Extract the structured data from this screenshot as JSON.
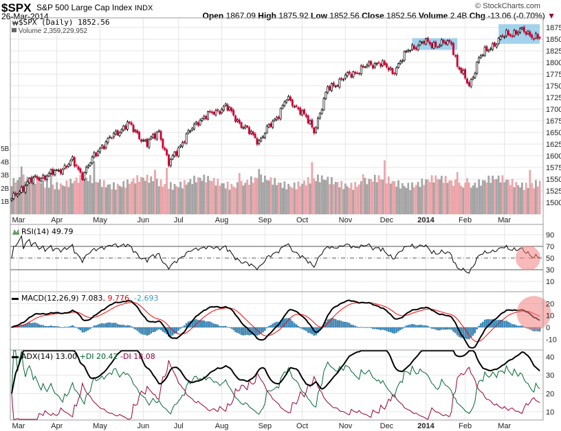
{
  "header": {
    "symbol": "$SPX",
    "name": "S&P 500 Large Cap Index",
    "exchange": "INDX",
    "date": "26-Mar-2014",
    "copyright": "© StockCharts.com",
    "open_label": "Open",
    "open": "1867.09",
    "high_label": "High",
    "high": "1875.92",
    "low_label": "Low",
    "low": "1852.56",
    "close_label": "Close",
    "close": "1852.56",
    "volume_label": "Volume",
    "volume": "2.4B",
    "chg_label": "Chg",
    "chg": "-13.06 (-0.70%)"
  },
  "colors": {
    "up": "#000000",
    "down": "#cc0033",
    "vol_up": "#aaaaaa",
    "vol_down": "#f0a8b0",
    "macd": "#000000",
    "signal": "#ff0000",
    "hist": "#3a8fc0",
    "pdi": "#006633",
    "mdi": "#990033",
    "highlight": "#8cc8e8",
    "circle": "#f28080"
  },
  "chart_data": [
    {
      "type": "candlestick",
      "title": "$SPX (Daily) 1852.56",
      "volume_legend": "Volume 2,359,229,952",
      "price_keypoints": [
        [
          0,
          1505
        ],
        [
          8,
          1544
        ],
        [
          23,
          1566
        ],
        [
          31,
          1588
        ],
        [
          36,
          1559
        ],
        [
          45,
          1618
        ],
        [
          59,
          1669
        ],
        [
          69,
          1625
        ],
        [
          75,
          1654
        ],
        [
          80,
          1581
        ],
        [
          85,
          1618
        ],
        [
          95,
          1676
        ],
        [
          109,
          1706
        ],
        [
          118,
          1662
        ],
        [
          126,
          1632
        ],
        [
          135,
          1684
        ],
        [
          140,
          1721
        ],
        [
          147,
          1699
        ],
        [
          154,
          1654
        ],
        [
          161,
          1743
        ],
        [
          170,
          1769
        ],
        [
          182,
          1794
        ],
        [
          187,
          1801
        ],
        [
          194,
          1779
        ],
        [
          203,
          1831
        ],
        [
          210,
          1843
        ],
        [
          217,
          1838
        ],
        [
          224,
          1843
        ],
        [
          227,
          1794
        ],
        [
          233,
          1750
        ],
        [
          238,
          1809
        ],
        [
          245,
          1838
        ],
        [
          252,
          1860
        ],
        [
          259,
          1868
        ],
        [
          269,
          1852.56
        ]
      ],
      "days": 270,
      "ylim": [
        1490,
        1890
      ],
      "yticks": [
        "1875",
        "1850",
        "1825",
        "1800",
        "1775",
        "1750",
        "1725",
        "1700",
        "1675",
        "1650",
        "1625",
        "1600",
        "1575",
        "1550",
        "1525",
        "1500"
      ],
      "volume_ticks": [
        "5B",
        "4B",
        "3B",
        "2B",
        "1B"
      ],
      "xticks": [
        {
          "label": "Mar",
          "day": 3.5
        },
        {
          "label": "Apr",
          "day": 23
        },
        {
          "label": "May",
          "day": 45
        },
        {
          "label": "Jun",
          "day": 67
        },
        {
          "label": "Jul",
          "day": 85
        },
        {
          "label": "Aug",
          "day": 107
        },
        {
          "label": "Sep",
          "day": 129
        },
        {
          "label": "Oct",
          "day": 148
        },
        {
          "label": "Nov",
          "day": 170
        },
        {
          "label": "Dec",
          "day": 191
        },
        {
          "label": "2014",
          "day": 211
        },
        {
          "label": "Feb",
          "day": 231
        },
        {
          "label": "Mar",
          "day": 251
        }
      ],
      "highlights": [
        {
          "from_day": 204,
          "to_day": 227,
          "price_range": [
            1827,
            1852
          ]
        },
        {
          "from_day": 248,
          "to_day": 269,
          "price_range": [
            1840,
            1882
          ]
        }
      ]
    },
    {
      "type": "line",
      "title": "RSI(14) 49.79",
      "yticks": [
        "90",
        "70",
        "50",
        "30",
        "10"
      ],
      "ylim": [
        0,
        100
      ],
      "levels": [
        70,
        50,
        30
      ],
      "highlight_day": 263,
      "highlight_value": 50
    },
    {
      "type": "line+bar",
      "title_main": "MACD(12,26,9) 7.083",
      "title_signal": ", 9.776",
      "title_hist": ", -2.693",
      "yticks": [
        "20",
        "10",
        "0",
        "-10"
      ],
      "ylim": [
        -20,
        25
      ],
      "highlight_day": 266,
      "highlight_value": 12
    },
    {
      "type": "line",
      "title_adx": "ADX(14) 13.00",
      "title_pdi": "+DI 20.42",
      "title_mdi": "-DI 18.08",
      "yticks": [
        "40",
        "30",
        "20",
        "10"
      ],
      "ylim": [
        5,
        43
      ]
    }
  ]
}
